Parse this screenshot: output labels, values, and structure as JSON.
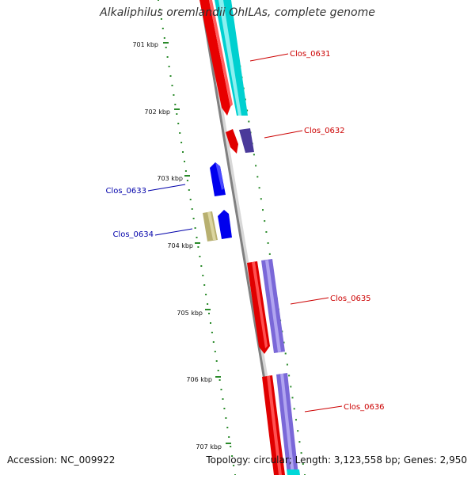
{
  "header": {
    "title": "Alkaliphilus oremlandii OhILAs, complete genome"
  },
  "footer": {
    "accession": "Accession: NC_009922",
    "summary": "Topology: circular; Length: 3,123,558 bp; Genes: 2,950"
  },
  "ticks": [
    "701 kbp",
    "702 kbp",
    "703 kbp",
    "704 kbp",
    "705 kbp",
    "706 kbp",
    "707 kbp"
  ],
  "genes": [
    {
      "label": "Clos_0631",
      "strand": "forward"
    },
    {
      "label": "Clos_0632",
      "strand": "forward"
    },
    {
      "label": "Clos_0633",
      "strand": "reverse"
    },
    {
      "label": "Clos_0634",
      "strand": "reverse"
    },
    {
      "label": "Clos_0635",
      "strand": "forward"
    },
    {
      "label": "Clos_0636",
      "strand": "forward"
    }
  ],
  "colors": {
    "cds_forward": "#ff0000",
    "cds_reverse": "#0000ff",
    "feature_cyan": "#00d8d8",
    "feature_purple": "#7a68d8",
    "feature_dark_purple": "#4a3a9a",
    "feature_khaki": "#c8c080",
    "label_forward": "#cc0000",
    "label_reverse": "#0000aa",
    "backbone": "#808080",
    "tick": "#2a8a2a"
  }
}
